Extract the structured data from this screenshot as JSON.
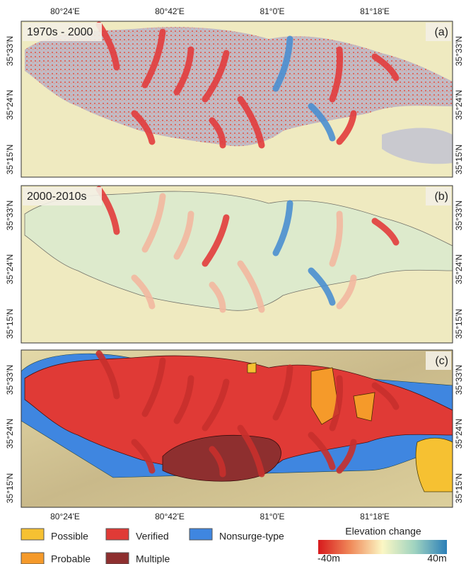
{
  "map": {
    "panels": [
      {
        "label": "1970s - 2000",
        "tag": "(a)"
      },
      {
        "label": "2000-2010s",
        "tag": "(b)"
      },
      {
        "tag": "(c)"
      }
    ],
    "lon_labels": [
      "80°24'E",
      "80°42'E",
      "81°0'E",
      "81°18'E"
    ],
    "lat_labels": [
      "35°33'N",
      "35°24'N",
      "35°15'N"
    ],
    "legend": {
      "items": [
        "Possible",
        "Verified",
        "Nonsurge-type",
        "Probable",
        "Multiple"
      ],
      "colorbar": {
        "title": "Elevation change",
        "min_label": "-40m",
        "max_label": "40m"
      }
    }
  }
}
